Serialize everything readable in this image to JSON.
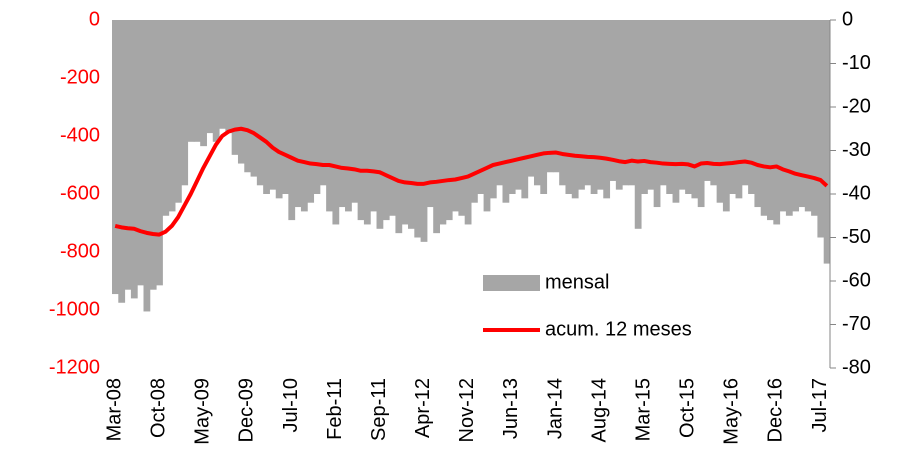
{
  "chart_data": {
    "type": "bar_line",
    "categories": [
      "Mar-08",
      null,
      null,
      null,
      null,
      null,
      null,
      "Oct-08",
      null,
      null,
      null,
      null,
      null,
      null,
      "May-09",
      null,
      null,
      null,
      null,
      null,
      null,
      "Dec-09",
      null,
      null,
      null,
      null,
      null,
      null,
      "Jul-10",
      null,
      null,
      null,
      null,
      null,
      null,
      "Feb-11",
      null,
      null,
      null,
      null,
      null,
      null,
      "Sep-11",
      null,
      null,
      null,
      null,
      null,
      null,
      "Apr-12",
      null,
      null,
      null,
      null,
      null,
      null,
      "Nov-12",
      null,
      null,
      null,
      null,
      null,
      null,
      "Jun-13",
      null,
      null,
      null,
      null,
      null,
      null,
      "Jan-14",
      null,
      null,
      null,
      null,
      null,
      null,
      "Aug-14",
      null,
      null,
      null,
      null,
      null,
      null,
      "Mar-15",
      null,
      null,
      null,
      null,
      null,
      null,
      "Oct-15",
      null,
      null,
      null,
      null,
      null,
      null,
      "May-16",
      null,
      null,
      null,
      null,
      null,
      null,
      "Dec-16",
      null,
      null,
      null,
      null,
      null,
      null,
      "Jul-17",
      null
    ],
    "series": [
      {
        "name": "mensal",
        "type": "bar",
        "axis": "y2",
        "color": "#a6a6a6",
        "values": [
          -63,
          -65,
          -62,
          -64,
          -61,
          -67,
          -62,
          -61,
          -45,
          -44,
          -42,
          -38,
          -28,
          -28,
          -29,
          -26,
          -28,
          -25,
          -26,
          -31,
          -33,
          -35,
          -36,
          -38,
          -40,
          -39,
          -41,
          -40,
          -46,
          -43,
          -44,
          -42,
          -40,
          -38,
          -44,
          -47,
          -43,
          -44,
          -42,
          -46,
          -47,
          -44,
          -48,
          -46,
          -45,
          -49,
          -47,
          -48,
          -50,
          -51,
          -43,
          -49,
          -47,
          -46,
          -44,
          -45,
          -47,
          -42,
          -40,
          -44,
          -41,
          -38,
          -42,
          -40,
          -39,
          -41,
          -36,
          -38,
          -40,
          -35,
          -35,
          -38,
          -40,
          -41,
          -39,
          -38,
          -40,
          -39,
          -41,
          -37,
          -39,
          -38,
          -38,
          -48,
          -40,
          -39,
          -43,
          -38,
          -40,
          -42,
          -39,
          -40,
          -41,
          -43,
          -37,
          -38,
          -42,
          -44,
          -40,
          -41,
          -38,
          -40,
          -43,
          -45,
          -46,
          -47,
          -44,
          -45,
          -44,
          -43,
          -44,
          -45,
          -50,
          -56
        ]
      },
      {
        "name": "acum. 12 meses",
        "type": "line",
        "axis": "y",
        "color": "#ff0000",
        "values": [
          -710,
          -715,
          -718,
          -720,
          -728,
          -734,
          -738,
          -740,
          -730,
          -710,
          -680,
          -640,
          -600,
          -555,
          -510,
          -470,
          -430,
          -400,
          -385,
          -378,
          -375,
          -380,
          -390,
          -405,
          -420,
          -440,
          -455,
          -465,
          -475,
          -485,
          -490,
          -495,
          -497,
          -500,
          -500,
          -505,
          -510,
          -512,
          -515,
          -520,
          -520,
          -522,
          -525,
          -535,
          -545,
          -555,
          -560,
          -562,
          -565,
          -565,
          -560,
          -558,
          -555,
          -552,
          -550,
          -545,
          -540,
          -530,
          -520,
          -510,
          -500,
          -495,
          -490,
          -485,
          -480,
          -475,
          -470,
          -465,
          -460,
          -458,
          -457,
          -462,
          -465,
          -468,
          -470,
          -472,
          -473,
          -475,
          -478,
          -482,
          -487,
          -490,
          -485,
          -488,
          -486,
          -490,
          -492,
          -495,
          -496,
          -497,
          -496,
          -498,
          -505,
          -495,
          -493,
          -496,
          -497,
          -495,
          -493,
          -490,
          -488,
          -492,
          -500,
          -505,
          -508,
          -505,
          -515,
          -522,
          -530,
          -535,
          -540,
          -545,
          -552,
          -572
        ]
      }
    ],
    "ylim": [
      -1200,
      0
    ],
    "yticks": [
      0,
      -200,
      -400,
      -600,
      -800,
      -1000,
      -1200
    ],
    "y2lim": [
      -80,
      0
    ],
    "y2ticks": [
      0,
      -10,
      -20,
      -30,
      -40,
      -50,
      -60,
      -70,
      -80
    ]
  }
}
